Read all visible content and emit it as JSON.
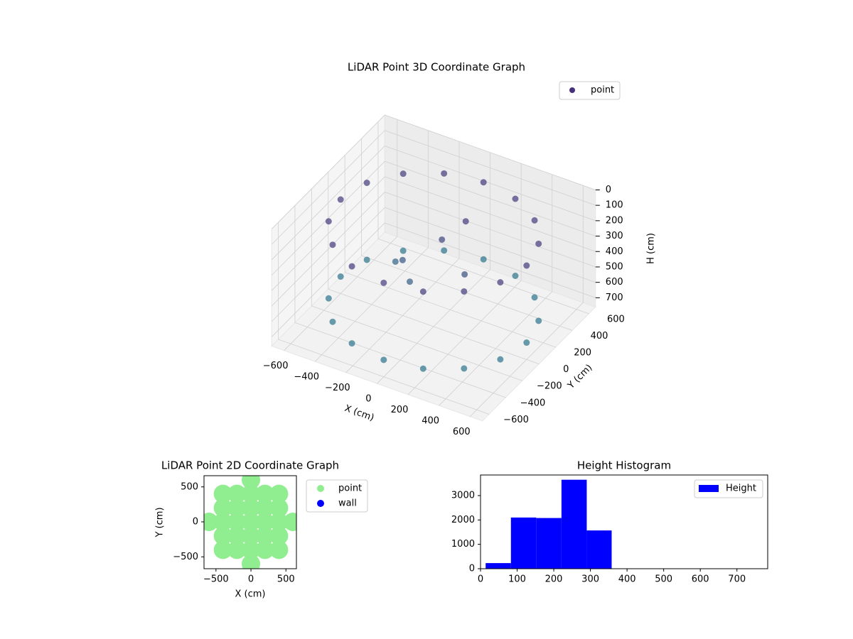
{
  "chart_data": [
    {
      "type": "scatter3d",
      "title": "LiDAR Point 3D Coordinate Graph",
      "x_label": "X (cm)",
      "y_label": "Y (cm)",
      "z_label": "H (cm)",
      "legend": "upper right",
      "z_inverted": true,
      "series": [
        {
          "name": "point",
          "color": "#46307e",
          "x": [
            600,
            554,
            424,
            230,
            0,
            -230,
            -424,
            -554,
            -600,
            -554,
            -424,
            -230,
            0,
            230,
            424,
            554,
            600,
            554,
            424,
            230,
            0,
            -230,
            -424,
            -554,
            -600,
            -554,
            -424,
            -230,
            0,
            230,
            424,
            554,
            -300,
            -200,
            0,
            100,
            -100,
            200
          ],
          "y": [
            0,
            230,
            424,
            554,
            600,
            554,
            424,
            230,
            0,
            -230,
            -424,
            -554,
            -600,
            -554,
            -424,
            -230,
            0,
            230,
            424,
            554,
            600,
            554,
            424,
            230,
            0,
            -230,
            -424,
            -554,
            -600,
            -554,
            -424,
            -230,
            100,
            0,
            100,
            200,
            -100,
            0
          ],
          "z": [
            150,
            150,
            150,
            150,
            150,
            150,
            150,
            150,
            150,
            150,
            150,
            150,
            150,
            150,
            150,
            150,
            650,
            650,
            650,
            650,
            650,
            650,
            650,
            650,
            650,
            650,
            650,
            650,
            650,
            650,
            650,
            650,
            500,
            400,
            250,
            150,
            450,
            350
          ]
        }
      ],
      "xlim": [
        -680,
        680
      ],
      "ylim": [
        -680,
        680
      ],
      "zlim": [
        0,
        760
      ],
      "xticks": [
        {
          "value": -600,
          "label": "−600"
        },
        {
          "value": -400,
          "label": "−400"
        },
        {
          "value": -200,
          "label": "−200"
        },
        0,
        200,
        400,
        600
      ],
      "yticks": [
        {
          "value": -600,
          "label": "−600"
        },
        {
          "value": -400,
          "label": "−400"
        },
        {
          "value": -200,
          "label": "−200"
        },
        0,
        200,
        400,
        600
      ],
      "zticks": [
        0,
        100,
        200,
        300,
        400,
        500,
        600,
        700
      ]
    },
    {
      "type": "scatter",
      "title": "LiDAR Point 2D Coordinate Graph",
      "x_label": "X (cm)",
      "y_label": "Y (cm)",
      "legend": "outside right",
      "series": [
        {
          "name": "point",
          "color": "#90ee90",
          "x": [
            -600,
            -400,
            -400,
            -400,
            -400,
            -400,
            -200,
            -200,
            -200,
            -200,
            -200,
            0,
            0,
            0,
            0,
            0,
            0,
            0,
            200,
            200,
            200,
            200,
            200,
            400,
            400,
            400,
            400,
            400,
            600
          ],
          "y": [
            0,
            -400,
            -200,
            0,
            200,
            400,
            -400,
            -200,
            0,
            200,
            400,
            -600,
            -400,
            -200,
            0,
            200,
            400,
            600,
            -400,
            -200,
            0,
            200,
            400,
            -400,
            -200,
            0,
            200,
            400,
            0
          ]
        },
        {
          "name": "wall",
          "color": "#0000ff",
          "x": [],
          "y": []
        }
      ],
      "xlim": [
        -671,
        650
      ],
      "ylim": [
        -670,
        660
      ],
      "xticks": [
        {
          "value": -500,
          "label": "−500"
        },
        0,
        500
      ],
      "yticks": [
        {
          "value": -500,
          "label": "−500"
        },
        0,
        500
      ]
    },
    {
      "type": "histogram",
      "title": "Height Histogram",
      "legend": "upper right",
      "series": [
        {
          "name": "Height",
          "color": "#0000ff",
          "bins": [
            14,
            83,
            152,
            221,
            290,
            358,
            427,
            496,
            565,
            634,
            703
          ],
          "counts": [
            230,
            2100,
            2080,
            3650,
            1570,
            0,
            0,
            0,
            0,
            0
          ]
        }
      ],
      "xlim": [
        0,
        784
      ],
      "ylim": [
        0,
        3845
      ],
      "xticks": [
        0,
        100,
        200,
        300,
        400,
        500,
        600,
        700
      ],
      "yticks": [
        0,
        1000,
        2000,
        3000
      ]
    }
  ]
}
